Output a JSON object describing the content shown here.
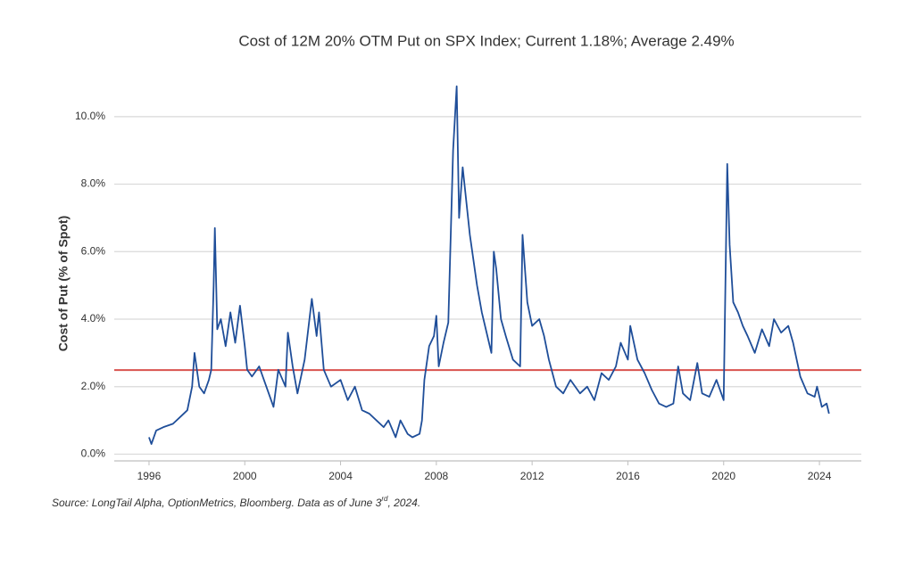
{
  "chart_data": {
    "type": "line",
    "title": "Cost of 12M 20% OTM Put on SPX Index; Current 1.18%; Average 2.49%",
    "y_label": "Cost of Put (% of Spot)",
    "source": {
      "before": "Source: LongTail Alpha, OptionMetrics, Bloomberg. Data as of June 3",
      "sup": "rd",
      "after": ", 2024."
    },
    "xlim": [
      1994.25,
      2025.75
    ],
    "xticks": [
      1996,
      2000,
      2004,
      2008,
      2012,
      2016,
      2020,
      2024
    ],
    "ylim": [
      -0.2,
      11
    ],
    "yticks": [
      {
        "value": 0,
        "label": "0.0%"
      },
      {
        "value": 2,
        "label": "2.0%"
      },
      {
        "value": 4,
        "label": "4.0%"
      },
      {
        "value": 6,
        "label": "6.0%"
      },
      {
        "value": 8,
        "label": "8.0%"
      },
      {
        "value": 10,
        "label": "10.0%"
      }
    ],
    "grid": true,
    "average_line": {
      "value": 2.49,
      "color": "#d9534f"
    },
    "x": [
      1996.0,
      1996.1,
      1996.3,
      1996.6,
      1997.0,
      1997.3,
      1997.6,
      1997.8,
      1997.9,
      1998.1,
      1998.3,
      1998.5,
      1998.6,
      1998.7,
      1998.75,
      1998.85,
      1999.0,
      1999.2,
      1999.4,
      1999.6,
      1999.8,
      2000.0,
      2000.1,
      2000.3,
      2000.6,
      2000.9,
      2001.2,
      2001.4,
      2001.7,
      2001.8,
      2002.0,
      2002.2,
      2002.5,
      2002.8,
      2003.0,
      2003.1,
      2003.3,
      2003.6,
      2004.0,
      2004.3,
      2004.6,
      2004.9,
      2005.2,
      2005.5,
      2005.8,
      2006.0,
      2006.3,
      2006.5,
      2006.8,
      2007.0,
      2007.3,
      2007.4,
      2007.5,
      2007.7,
      2007.9,
      2008.0,
      2008.1,
      2008.3,
      2008.5,
      2008.7,
      2008.85,
      2008.95,
      2009.1,
      2009.4,
      2009.7,
      2009.9,
      2010.1,
      2010.3,
      2010.4,
      2010.5,
      2010.7,
      2010.9,
      2011.2,
      2011.5,
      2011.6,
      2011.8,
      2012.0,
      2012.3,
      2012.5,
      2012.7,
      2013.0,
      2013.3,
      2013.6,
      2014.0,
      2014.3,
      2014.6,
      2014.9,
      2015.2,
      2015.5,
      2015.7,
      2016.0,
      2016.1,
      2016.4,
      2016.7,
      2017.0,
      2017.3,
      2017.6,
      2017.9,
      2018.1,
      2018.3,
      2018.6,
      2018.9,
      2019.1,
      2019.4,
      2019.7,
      2020.0,
      2020.15,
      2020.25,
      2020.4,
      2020.6,
      2020.8,
      2021.0,
      2021.3,
      2021.6,
      2021.9,
      2022.1,
      2022.4,
      2022.7,
      2022.9,
      2023.2,
      2023.5,
      2023.8,
      2023.9,
      2024.1,
      2024.3,
      2024.4
    ],
    "series": [
      {
        "color": "#1f4e99",
        "values": [
          0.5,
          0.3,
          0.7,
          0.8,
          0.9,
          1.1,
          1.3,
          2.0,
          3.0,
          2.0,
          1.8,
          2.2,
          2.5,
          5.0,
          6.7,
          3.7,
          4.0,
          3.2,
          4.2,
          3.3,
          4.4,
          3.2,
          2.5,
          2.3,
          2.6,
          2.0,
          1.4,
          2.5,
          2.0,
          3.6,
          2.6,
          1.8,
          2.8,
          4.6,
          3.5,
          4.2,
          2.5,
          2.0,
          2.2,
          1.6,
          2.0,
          1.3,
          1.2,
          1.0,
          0.8,
          1.0,
          0.5,
          1.0,
          0.6,
          0.5,
          0.6,
          1.0,
          2.2,
          3.2,
          3.5,
          4.1,
          2.6,
          3.3,
          3.9,
          9.0,
          10.9,
          7.0,
          8.5,
          6.5,
          5.0,
          4.2,
          3.6,
          3.0,
          6.0,
          5.5,
          4.0,
          3.5,
          2.8,
          2.6,
          6.5,
          4.5,
          3.8,
          4.0,
          3.5,
          2.8,
          2.0,
          1.8,
          2.2,
          1.8,
          2.0,
          1.6,
          2.4,
          2.2,
          2.6,
          3.3,
          2.8,
          3.8,
          2.8,
          2.4,
          1.9,
          1.5,
          1.4,
          1.5,
          2.6,
          1.8,
          1.6,
          2.7,
          1.8,
          1.7,
          2.2,
          1.6,
          8.6,
          6.2,
          4.5,
          4.2,
          3.8,
          3.5,
          3.0,
          3.7,
          3.2,
          4.0,
          3.6,
          3.8,
          3.3,
          2.3,
          1.8,
          1.7,
          2.0,
          1.4,
          1.5,
          1.2
        ]
      }
    ]
  }
}
